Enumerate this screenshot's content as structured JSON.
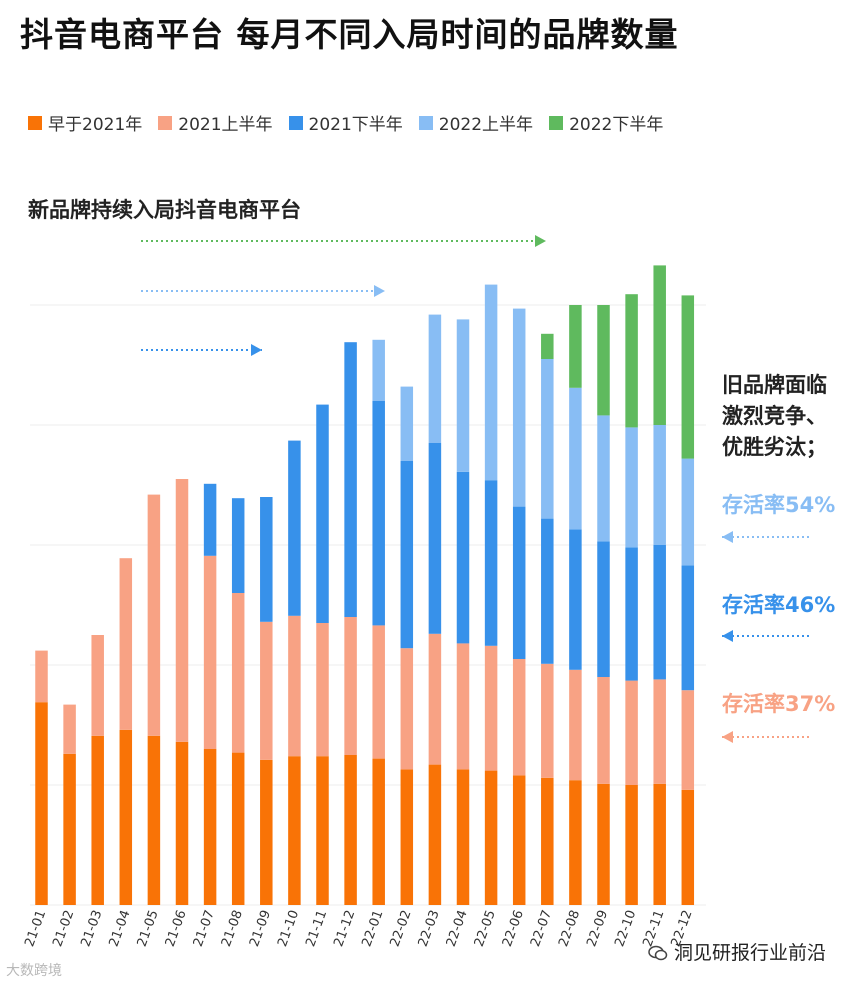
{
  "title": "抖音电商平台 每月不同入局时间的品牌数量",
  "subtitle": "新品牌持续入局抖音电商平台",
  "legend": [
    {
      "label": "早于2021年",
      "color": "#f97306"
    },
    {
      "label": "2021上半年",
      "color": "#f8a284"
    },
    {
      "label": "2021下半年",
      "color": "#3791ea"
    },
    {
      "label": "2022上半年",
      "color": "#88bdf4"
    },
    {
      "label": "2022下半年",
      "color": "#5fba5e"
    }
  ],
  "annotations": {
    "old_brand_note": [
      "旧品牌面临",
      "激烈竞争、",
      "优胜劣汰；"
    ],
    "survival_2022h1": {
      "text": "存活率54%",
      "color": "#88bdf4"
    },
    "survival_2021h2": {
      "text": "存活率46%",
      "color": "#3791ea"
    },
    "survival_2021h1": {
      "text": "存活率37%",
      "color": "#f8a284"
    }
  },
  "watermark_left": "大数跨境",
  "watermark_right": "洞见研报行业前沿",
  "chart_data": {
    "type": "bar",
    "stacked": true,
    "categories": [
      "21-01",
      "21-02",
      "21-03",
      "21-04",
      "21-05",
      "21-06",
      "21-07",
      "21-08",
      "21-09",
      "21-10",
      "21-11",
      "21-12",
      "22-01",
      "22-02",
      "22-03",
      "22-04",
      "22-05",
      "22-06",
      "22-07",
      "22-08",
      "22-09",
      "22-10",
      "22-11",
      "22-12"
    ],
    "series": [
      {
        "name": "早于2021年",
        "color": "#f97306",
        "values": [
          169,
          126,
          141,
          146,
          141,
          136,
          130,
          127,
          121,
          124,
          124,
          125,
          122,
          113,
          117,
          113,
          112,
          108,
          106,
          104,
          101,
          100,
          101,
          96
        ]
      },
      {
        "name": "2021上半年",
        "color": "#f8a284",
        "values": [
          43,
          41,
          84,
          143,
          201,
          219,
          161,
          133,
          115,
          117,
          111,
          115,
          111,
          101,
          109,
          105,
          104,
          97,
          95,
          92,
          89,
          87,
          87,
          83
        ]
      },
      {
        "name": "2021下半年",
        "color": "#3791ea",
        "values": [
          0,
          0,
          0,
          0,
          0,
          0,
          60,
          79,
          104,
          146,
          182,
          229,
          187,
          156,
          159,
          143,
          138,
          127,
          121,
          117,
          113,
          111,
          112,
          104
        ]
      },
      {
        "name": "2022上半年",
        "color": "#88bdf4",
        "values": [
          0,
          0,
          0,
          0,
          0,
          0,
          0,
          0,
          0,
          0,
          0,
          0,
          51,
          62,
          107,
          127,
          163,
          165,
          133,
          118,
          105,
          100,
          100,
          89
        ]
      },
      {
        "name": "2022下半年",
        "color": "#5fba5e",
        "values": [
          0,
          0,
          0,
          0,
          0,
          0,
          0,
          0,
          0,
          0,
          0,
          0,
          0,
          0,
          0,
          0,
          0,
          0,
          21,
          69,
          92,
          111,
          133,
          136
        ]
      }
    ],
    "title": "抖音电商平台 每月不同入局时间的品牌数量",
    "xlabel": "",
    "ylabel": "",
    "ylim": [
      0,
      550
    ],
    "grid": true,
    "legend_position": "top"
  }
}
